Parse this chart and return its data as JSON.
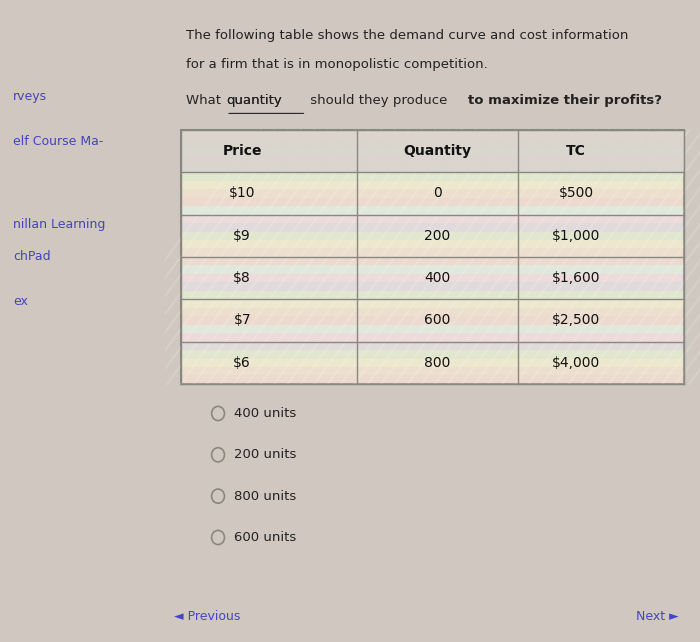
{
  "title_line1": "The following table shows the demand curve and cost information",
  "title_line2": "for a firm that is in monopolistic competition.",
  "question": "What quantity should they produce to maximize their profits?",
  "question_underline": "quantity",
  "question_bold": "to maximize their profits?",
  "left_sidebar": [
    "rveys",
    "elf Course Ma-",
    "",
    "nillan Learning",
    "chPad",
    "",
    "ex"
  ],
  "table_headers": [
    "Price",
    "Quantity",
    "TC"
  ],
  "table_data": [
    [
      "$10",
      "0",
      "$500"
    ],
    [
      "$9",
      "200",
      "$1,000"
    ],
    [
      "$8",
      "400",
      "$1,600"
    ],
    [
      "$7",
      "600",
      "$2,500"
    ],
    [
      "$6",
      "800",
      "$4,000"
    ]
  ],
  "radio_options": [
    "400 units",
    "200 units",
    "800 units",
    "600 units"
  ],
  "nav_prev": "Previous",
  "nav_next": "Next",
  "bg_color": "#d0c8c0",
  "panel_color": "#f0ede8",
  "table_bg": "#e8e4dc",
  "table_header_bg": "#e0dcd4",
  "table_border_color": "#888880",
  "sidebar_bg": "#c8c0b8",
  "left_sidebar_colors": [
    "#4444cc",
    "#4444cc",
    "#4444cc",
    "#4444cc",
    "#4444cc"
  ],
  "bottom_bar_color": "#d8d4cc",
  "rainbow_colors": true
}
